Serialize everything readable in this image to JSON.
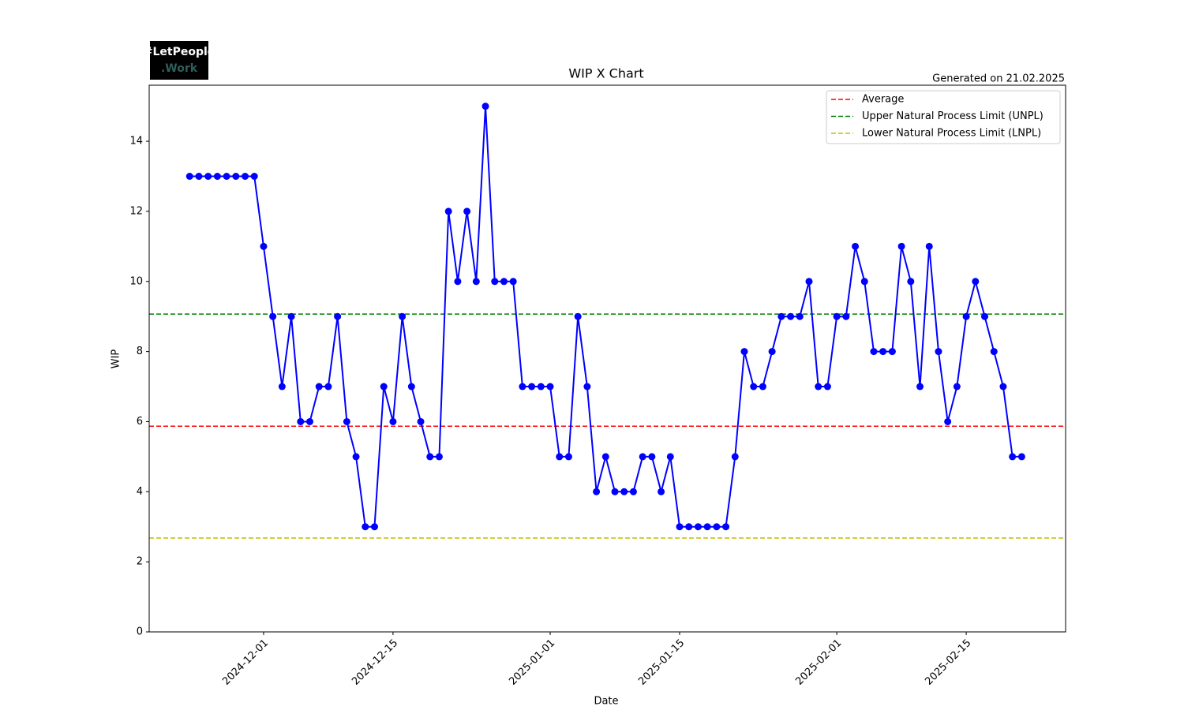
{
  "logo": {
    "line1": "#LetPeople",
    "line2": ".Work"
  },
  "chart_data": {
    "type": "line",
    "title": "WIP X Chart",
    "subtitle": "Generated on 21.02.2025",
    "x_label": "Date",
    "y_label": "WIP",
    "x": [
      "2024-11-23",
      "2024-11-24",
      "2024-11-25",
      "2024-11-26",
      "2024-11-27",
      "2024-11-28",
      "2024-11-29",
      "2024-11-30",
      "2024-12-01",
      "2024-12-02",
      "2024-12-03",
      "2024-12-04",
      "2024-12-05",
      "2024-12-06",
      "2024-12-07",
      "2024-12-08",
      "2024-12-09",
      "2024-12-10",
      "2024-12-11",
      "2024-12-12",
      "2024-12-13",
      "2024-12-14",
      "2024-12-15",
      "2024-12-16",
      "2024-12-17",
      "2024-12-18",
      "2024-12-19",
      "2024-12-20",
      "2024-12-21",
      "2024-12-22",
      "2024-12-23",
      "2024-12-24",
      "2024-12-25",
      "2024-12-26",
      "2024-12-27",
      "2024-12-28",
      "2024-12-29",
      "2024-12-30",
      "2024-12-31",
      "2025-01-01",
      "2025-01-02",
      "2025-01-03",
      "2025-01-04",
      "2025-01-05",
      "2025-01-06",
      "2025-01-07",
      "2025-01-08",
      "2025-01-09",
      "2025-01-10",
      "2025-01-11",
      "2025-01-12",
      "2025-01-13",
      "2025-01-14",
      "2025-01-15",
      "2025-01-16",
      "2025-01-17",
      "2025-01-18",
      "2025-01-19",
      "2025-01-20",
      "2025-01-21",
      "2025-01-22",
      "2025-01-23",
      "2025-01-24",
      "2025-01-25",
      "2025-01-26",
      "2025-01-27",
      "2025-01-28",
      "2025-01-29",
      "2025-01-30",
      "2025-01-31",
      "2025-02-01",
      "2025-02-02",
      "2025-02-03",
      "2025-02-04",
      "2025-02-05",
      "2025-02-06",
      "2025-02-07",
      "2025-02-08",
      "2025-02-09",
      "2025-02-10",
      "2025-02-11",
      "2025-02-12",
      "2025-02-13",
      "2025-02-14",
      "2025-02-15",
      "2025-02-16",
      "2025-02-17",
      "2025-02-18",
      "2025-02-19",
      "2025-02-20",
      "2025-02-21"
    ],
    "series": [
      {
        "name": "WIP",
        "color": "#0000ff",
        "values": [
          13,
          13,
          13,
          13,
          13,
          13,
          13,
          13,
          11,
          9,
          7,
          9,
          6,
          6,
          7,
          7,
          9,
          6,
          5,
          3,
          3,
          7,
          6,
          9,
          7,
          6,
          5,
          5,
          12,
          10,
          12,
          10,
          15,
          10,
          10,
          10,
          7,
          7,
          7,
          7,
          5,
          5,
          9,
          7,
          4,
          5,
          4,
          4,
          4,
          5,
          5,
          4,
          5,
          3,
          3,
          3,
          3,
          3,
          3,
          5,
          8,
          7,
          7,
          8,
          9,
          9,
          9,
          10,
          7,
          7,
          9,
          9,
          11,
          10,
          8,
          8,
          8,
          11,
          10,
          7,
          11,
          8,
          6,
          7,
          9,
          10,
          9,
          8,
          7,
          5,
          5
        ]
      }
    ],
    "hlines": [
      {
        "name": "Average",
        "value": 5.87,
        "color": "#ff0000"
      },
      {
        "name": "Upper Natural Process Limit (UNPL)",
        "value": 9.07,
        "color": "#008000"
      },
      {
        "name": "Lower Natural Process Limit (LNPL)",
        "value": 2.68,
        "color": "#bfbf00"
      }
    ],
    "xlim": [
      "2024-11-18T15:00",
      "2025-02-25T18:00"
    ],
    "xticks": [
      "2024-12-01",
      "2024-12-15",
      "2025-01-01",
      "2025-01-15",
      "2025-02-01",
      "2025-02-15"
    ],
    "ylim": [
      0,
      15.6
    ],
    "yticks": [
      0,
      2,
      4,
      6,
      8,
      10,
      12,
      14
    ],
    "grid": false,
    "legend": "upper right"
  }
}
